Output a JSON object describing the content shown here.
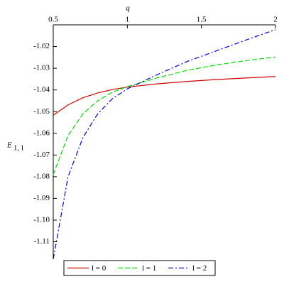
{
  "chart_data": {
    "type": "line",
    "x_label": "q",
    "y_label": "E",
    "y_label_sub": "1, l",
    "x_axis_position": "top",
    "legend_position": "bottom",
    "xlim": [
      0.5,
      2
    ],
    "xticks": [
      0.5,
      1,
      1.5,
      2
    ],
    "ylim": [
      -1.118,
      -1.01
    ],
    "yticks": [
      -1.02,
      -1.03,
      -1.04,
      -1.05,
      -1.06,
      -1.07,
      -1.08,
      -1.09,
      {
        "value": -1.1,
        "label": "-1.10"
      },
      -1.11
    ],
    "x": [
      0.5,
      0.6,
      0.7,
      0.8,
      0.9,
      1.0,
      1.2,
      1.4,
      1.6,
      1.8,
      2.0
    ],
    "series": [
      {
        "name": "l = 0",
        "color": "#cc0000",
        "dash": "solid",
        "values": [
          -1.0517,
          -1.0469,
          -1.0436,
          -1.0414,
          -1.0398,
          -1.0387,
          -1.0372,
          -1.0361,
          -1.0352,
          -1.0345,
          -1.0338
        ]
      },
      {
        "name": "l = 1",
        "color": "#00dd00",
        "dash": "dash",
        "values": [
          -1.079,
          -1.061,
          -1.051,
          -1.045,
          -1.041,
          -1.0385,
          -1.0345,
          -1.031,
          -1.0285,
          -1.0265,
          -1.0248
        ]
      },
      {
        "name": "l = 2",
        "color": "#0000cc",
        "dash": "dashdot",
        "values": [
          -1.118,
          -1.08,
          -1.062,
          -1.051,
          -1.044,
          -1.0395,
          -1.033,
          -1.027,
          -1.022,
          -1.017,
          -1.0122
        ]
      }
    ]
  }
}
